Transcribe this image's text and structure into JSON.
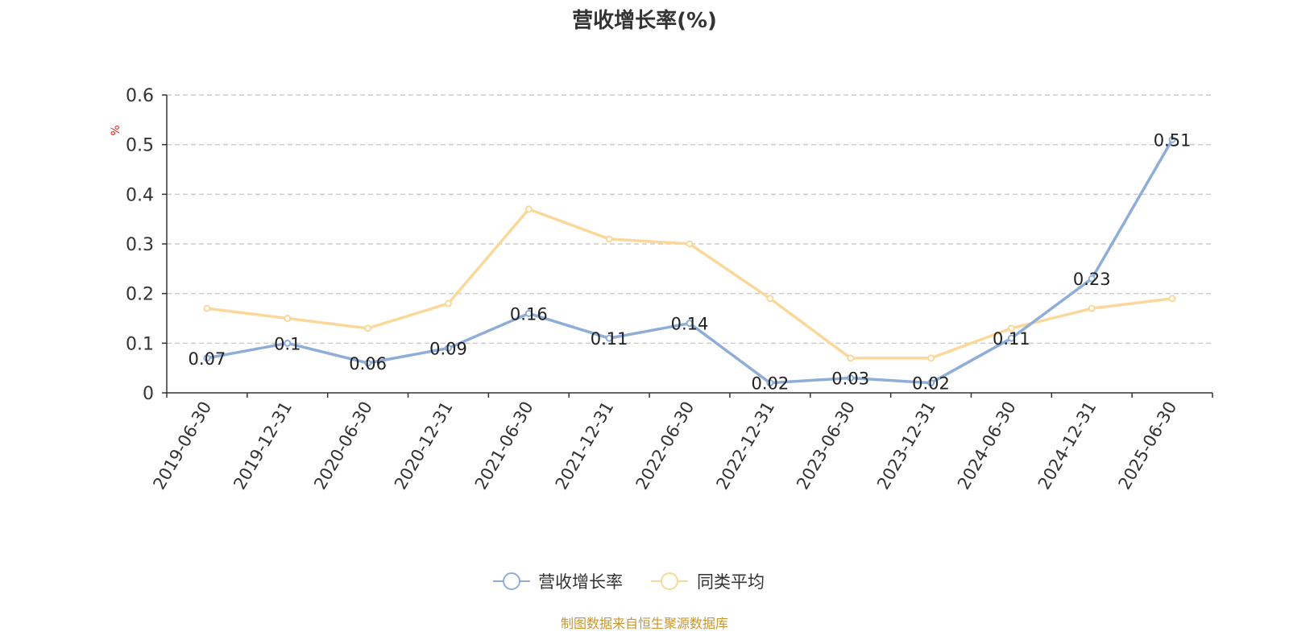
{
  "chart_data": {
    "type": "line",
    "title": "营收增长率(%)",
    "ylabel": "%",
    "ylim": [
      0,
      0.6
    ],
    "yticks": [
      0,
      0.1,
      0.2,
      0.3,
      0.4,
      0.5,
      0.6
    ],
    "ytick_labels": [
      "0",
      "0.1",
      "0.2",
      "0.3",
      "0.4",
      "0.5",
      "0.6"
    ],
    "categories": [
      "2019-06-30",
      "2019-12-31",
      "2020-06-30",
      "2020-12-31",
      "2021-06-30",
      "2021-12-31",
      "2022-06-30",
      "2022-12-31",
      "2023-06-30",
      "2023-12-31",
      "2024-06-30",
      "2024-12-31",
      "2025-06-30"
    ],
    "series": [
      {
        "name": "营收增长率",
        "color": "#8eaed8",
        "values": [
          0.07,
          0.1,
          0.06,
          0.09,
          0.16,
          0.11,
          0.14,
          0.02,
          0.03,
          0.02,
          0.11,
          0.23,
          0.51
        ],
        "labels": [
          "0.07",
          "0.1",
          "0.06",
          "0.09",
          "0.16",
          "0.11",
          "0.14",
          "0.02",
          "0.03",
          "0.02",
          "0.11",
          "0.23",
          "0.51"
        ]
      },
      {
        "name": "同类平均",
        "color": "#fbd89a",
        "values": [
          0.17,
          0.15,
          0.13,
          0.18,
          0.37,
          0.31,
          0.3,
          0.19,
          0.07,
          0.07,
          0.13,
          0.17,
          0.19
        ]
      }
    ],
    "grid": "horizontal-dashed",
    "legend_position": "bottom-center",
    "ylabel_color": "#e02020"
  },
  "source": {
    "text": "制图数据来自恒生聚源数据库",
    "color": "#c8962e"
  }
}
